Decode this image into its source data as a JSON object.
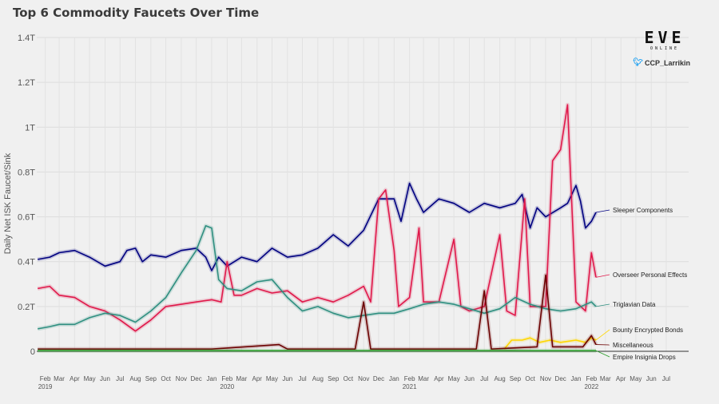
{
  "chart_data": {
    "type": "line",
    "title": "Top 6 Commodity Faucets Over Time",
    "ylabel": "Daily Net ISK Faucet/Sink",
    "y_ticks": [
      {
        "value": 0,
        "label": "0"
      },
      {
        "value": 0.2,
        "label": "0.2T"
      },
      {
        "value": 0.4,
        "label": "0.4T"
      },
      {
        "value": 0.6,
        "label": "0.6T"
      },
      {
        "value": 0.8,
        "label": "0.8T"
      },
      {
        "value": 1.0,
        "label": "1T"
      },
      {
        "value": 1.2,
        "label": "1.2T"
      },
      {
        "value": 1.4,
        "label": "1.4T"
      }
    ],
    "ylim": [
      0,
      1.4
    ],
    "xlim": [
      "2019-01-15",
      "2022-08-15"
    ],
    "x_ticks": [
      {
        "date": "2019-02-01",
        "label": "Feb",
        "year": "2019"
      },
      {
        "date": "2019-03-01",
        "label": "Mar"
      },
      {
        "date": "2019-04-01",
        "label": "Apr"
      },
      {
        "date": "2019-05-01",
        "label": "May"
      },
      {
        "date": "2019-06-01",
        "label": "Jun"
      },
      {
        "date": "2019-07-01",
        "label": "Jul"
      },
      {
        "date": "2019-08-01",
        "label": "Aug"
      },
      {
        "date": "2019-09-01",
        "label": "Sep"
      },
      {
        "date": "2019-10-01",
        "label": "Oct"
      },
      {
        "date": "2019-11-01",
        "label": "Nov"
      },
      {
        "date": "2019-12-01",
        "label": "Dec"
      },
      {
        "date": "2020-01-01",
        "label": "Jan"
      },
      {
        "date": "2020-02-01",
        "label": "Feb",
        "year": "2020"
      },
      {
        "date": "2020-03-01",
        "label": "Mar"
      },
      {
        "date": "2020-04-01",
        "label": "Apr"
      },
      {
        "date": "2020-05-01",
        "label": "May"
      },
      {
        "date": "2020-06-01",
        "label": "Jun"
      },
      {
        "date": "2020-07-01",
        "label": "Jul"
      },
      {
        "date": "2020-08-01",
        "label": "Aug"
      },
      {
        "date": "2020-09-01",
        "label": "Sep"
      },
      {
        "date": "2020-10-01",
        "label": "Oct"
      },
      {
        "date": "2020-11-01",
        "label": "Nov"
      },
      {
        "date": "2020-12-01",
        "label": "Dec"
      },
      {
        "date": "2021-01-01",
        "label": "Jan"
      },
      {
        "date": "2021-02-01",
        "label": "Feb",
        "year": "2021"
      },
      {
        "date": "2021-03-01",
        "label": "Mar"
      },
      {
        "date": "2021-04-01",
        "label": "Apr"
      },
      {
        "date": "2021-05-01",
        "label": "May"
      },
      {
        "date": "2021-06-01",
        "label": "Jun"
      },
      {
        "date": "2021-07-01",
        "label": "Jul"
      },
      {
        "date": "2021-08-01",
        "label": "Aug"
      },
      {
        "date": "2021-09-01",
        "label": "Sep"
      },
      {
        "date": "2021-10-01",
        "label": "Oct"
      },
      {
        "date": "2021-11-01",
        "label": "Nov"
      },
      {
        "date": "2021-12-01",
        "label": "Dec"
      },
      {
        "date": "2022-01-01",
        "label": "Jan"
      },
      {
        "date": "2022-02-01",
        "label": "Feb",
        "year": "2022"
      },
      {
        "date": "2022-03-01",
        "label": "Mar"
      },
      {
        "date": "2022-04-01",
        "label": "Apr"
      },
      {
        "date": "2022-05-01",
        "label": "May"
      },
      {
        "date": "2022-06-01",
        "label": "Jun"
      },
      {
        "date": "2022-07-01",
        "label": "Jul"
      }
    ],
    "grid": true,
    "series": [
      {
        "name": "Sleeper Components",
        "color": "#000080",
        "points": [
          [
            "2019-01-17",
            0.41
          ],
          [
            "2019-02-10",
            0.42
          ],
          [
            "2019-03-01",
            0.44
          ],
          [
            "2019-04-01",
            0.45
          ],
          [
            "2019-05-01",
            0.42
          ],
          [
            "2019-06-01",
            0.38
          ],
          [
            "2019-07-01",
            0.4
          ],
          [
            "2019-07-15",
            0.45
          ],
          [
            "2019-08-01",
            0.46
          ],
          [
            "2019-08-15",
            0.4
          ],
          [
            "2019-09-01",
            0.43
          ],
          [
            "2019-10-01",
            0.42
          ],
          [
            "2019-11-01",
            0.45
          ],
          [
            "2019-12-01",
            0.46
          ],
          [
            "2019-12-20",
            0.42
          ],
          [
            "2020-01-01",
            0.36
          ],
          [
            "2020-01-15",
            0.42
          ],
          [
            "2020-02-01",
            0.38
          ],
          [
            "2020-03-01",
            0.42
          ],
          [
            "2020-04-01",
            0.4
          ],
          [
            "2020-05-01",
            0.46
          ],
          [
            "2020-06-01",
            0.42
          ],
          [
            "2020-07-01",
            0.43
          ],
          [
            "2020-08-01",
            0.46
          ],
          [
            "2020-09-01",
            0.52
          ],
          [
            "2020-10-01",
            0.47
          ],
          [
            "2020-11-01",
            0.54
          ],
          [
            "2020-12-01",
            0.68
          ],
          [
            "2021-01-01",
            0.68
          ],
          [
            "2021-01-15",
            0.58
          ],
          [
            "2021-02-01",
            0.75
          ],
          [
            "2021-02-15",
            0.68
          ],
          [
            "2021-03-01",
            0.62
          ],
          [
            "2021-04-01",
            0.68
          ],
          [
            "2021-05-01",
            0.66
          ],
          [
            "2021-06-01",
            0.62
          ],
          [
            "2021-07-01",
            0.66
          ],
          [
            "2021-08-01",
            0.64
          ],
          [
            "2021-09-01",
            0.66
          ],
          [
            "2021-09-15",
            0.7
          ],
          [
            "2021-10-01",
            0.55
          ],
          [
            "2021-10-15",
            0.64
          ],
          [
            "2021-11-01",
            0.6
          ],
          [
            "2021-12-01",
            0.64
          ],
          [
            "2021-12-15",
            0.66
          ],
          [
            "2022-01-01",
            0.74
          ],
          [
            "2022-01-10",
            0.67
          ],
          [
            "2022-01-20",
            0.55
          ],
          [
            "2022-02-01",
            0.58
          ],
          [
            "2022-02-10",
            0.62
          ]
        ]
      },
      {
        "name": "Overseer Personal Effects",
        "color": "#e0184a",
        "points": [
          [
            "2019-01-17",
            0.28
          ],
          [
            "2019-02-10",
            0.29
          ],
          [
            "2019-03-01",
            0.25
          ],
          [
            "2019-04-01",
            0.24
          ],
          [
            "2019-05-01",
            0.2
          ],
          [
            "2019-06-01",
            0.18
          ],
          [
            "2019-07-01",
            0.14
          ],
          [
            "2019-08-01",
            0.09
          ],
          [
            "2019-09-01",
            0.14
          ],
          [
            "2019-10-01",
            0.2
          ],
          [
            "2019-11-01",
            0.21
          ],
          [
            "2019-12-01",
            0.22
          ],
          [
            "2020-01-01",
            0.23
          ],
          [
            "2020-01-20",
            0.22
          ],
          [
            "2020-02-01",
            0.4
          ],
          [
            "2020-02-15",
            0.25
          ],
          [
            "2020-03-01",
            0.25
          ],
          [
            "2020-04-01",
            0.28
          ],
          [
            "2020-05-01",
            0.26
          ],
          [
            "2020-06-01",
            0.27
          ],
          [
            "2020-07-01",
            0.22
          ],
          [
            "2020-08-01",
            0.24
          ],
          [
            "2020-09-01",
            0.22
          ],
          [
            "2020-10-01",
            0.25
          ],
          [
            "2020-11-01",
            0.29
          ],
          [
            "2020-11-15",
            0.22
          ],
          [
            "2020-12-01",
            0.68
          ],
          [
            "2020-12-15",
            0.72
          ],
          [
            "2021-01-01",
            0.45
          ],
          [
            "2021-01-10",
            0.2
          ],
          [
            "2021-02-01",
            0.24
          ],
          [
            "2021-02-20",
            0.55
          ],
          [
            "2021-03-01",
            0.22
          ],
          [
            "2021-04-01",
            0.22
          ],
          [
            "2021-05-01",
            0.5
          ],
          [
            "2021-05-15",
            0.2
          ],
          [
            "2021-06-01",
            0.18
          ],
          [
            "2021-07-01",
            0.2
          ],
          [
            "2021-08-01",
            0.52
          ],
          [
            "2021-08-15",
            0.18
          ],
          [
            "2021-09-01",
            0.16
          ],
          [
            "2021-09-20",
            0.68
          ],
          [
            "2021-10-01",
            0.2
          ],
          [
            "2021-11-01",
            0.2
          ],
          [
            "2021-11-15",
            0.85
          ],
          [
            "2021-12-01",
            0.9
          ],
          [
            "2021-12-15",
            1.1
          ],
          [
            "2022-01-01",
            0.22
          ],
          [
            "2022-01-20",
            0.18
          ],
          [
            "2022-02-01",
            0.44
          ],
          [
            "2022-02-10",
            0.33
          ]
        ]
      },
      {
        "name": "Triglavian Data",
        "color": "#2f8f80",
        "points": [
          [
            "2019-01-17",
            0.1
          ],
          [
            "2019-02-10",
            0.11
          ],
          [
            "2019-03-01",
            0.12
          ],
          [
            "2019-04-01",
            0.12
          ],
          [
            "2019-05-01",
            0.15
          ],
          [
            "2019-06-01",
            0.17
          ],
          [
            "2019-07-01",
            0.16
          ],
          [
            "2019-08-01",
            0.13
          ],
          [
            "2019-09-01",
            0.18
          ],
          [
            "2019-10-01",
            0.24
          ],
          [
            "2019-11-01",
            0.35
          ],
          [
            "2019-12-01",
            0.45
          ],
          [
            "2019-12-20",
            0.56
          ],
          [
            "2020-01-01",
            0.55
          ],
          [
            "2020-01-15",
            0.32
          ],
          [
            "2020-02-01",
            0.28
          ],
          [
            "2020-03-01",
            0.27
          ],
          [
            "2020-04-01",
            0.31
          ],
          [
            "2020-05-01",
            0.32
          ],
          [
            "2020-06-01",
            0.24
          ],
          [
            "2020-07-01",
            0.18
          ],
          [
            "2020-08-01",
            0.2
          ],
          [
            "2020-09-01",
            0.17
          ],
          [
            "2020-10-01",
            0.15
          ],
          [
            "2020-11-01",
            0.16
          ],
          [
            "2020-12-01",
            0.17
          ],
          [
            "2021-01-01",
            0.17
          ],
          [
            "2021-02-01",
            0.19
          ],
          [
            "2021-03-01",
            0.21
          ],
          [
            "2021-04-01",
            0.22
          ],
          [
            "2021-05-01",
            0.21
          ],
          [
            "2021-06-01",
            0.19
          ],
          [
            "2021-07-01",
            0.17
          ],
          [
            "2021-08-01",
            0.19
          ],
          [
            "2021-09-01",
            0.24
          ],
          [
            "2021-10-01",
            0.21
          ],
          [
            "2021-11-01",
            0.19
          ],
          [
            "2021-12-01",
            0.18
          ],
          [
            "2022-01-01",
            0.19
          ],
          [
            "2022-02-01",
            0.22
          ],
          [
            "2022-02-10",
            0.2
          ]
        ]
      },
      {
        "name": "Bounty Encrypted Bonds",
        "color": "#ffd700",
        "points": [
          [
            "2021-08-10",
            0.01
          ],
          [
            "2021-08-25",
            0.05
          ],
          [
            "2021-09-15",
            0.05
          ],
          [
            "2021-10-01",
            0.06
          ],
          [
            "2021-10-20",
            0.04
          ],
          [
            "2021-11-10",
            0.05
          ],
          [
            "2021-12-01",
            0.04
          ],
          [
            "2022-01-01",
            0.05
          ],
          [
            "2022-01-20",
            0.04
          ],
          [
            "2022-02-01",
            0.06
          ],
          [
            "2022-02-10",
            0.05
          ]
        ]
      },
      {
        "name": "Miscellaneous",
        "color": "#6b0000",
        "points": [
          [
            "2019-01-17",
            0.01
          ],
          [
            "2019-06-01",
            0.01
          ],
          [
            "2020-01-01",
            0.01
          ],
          [
            "2020-05-15",
            0.03
          ],
          [
            "2020-06-01",
            0.01
          ],
          [
            "2020-10-15",
            0.01
          ],
          [
            "2020-11-01",
            0.22
          ],
          [
            "2020-11-15",
            0.01
          ],
          [
            "2021-06-15",
            0.01
          ],
          [
            "2021-07-01",
            0.27
          ],
          [
            "2021-07-15",
            0.01
          ],
          [
            "2021-10-15",
            0.02
          ],
          [
            "2021-11-01",
            0.34
          ],
          [
            "2021-11-15",
            0.02
          ],
          [
            "2022-01-15",
            0.02
          ],
          [
            "2022-02-01",
            0.07
          ],
          [
            "2022-02-10",
            0.03
          ]
        ]
      },
      {
        "name": "Empire Insignia Drops",
        "color": "#2e9e2e",
        "points": [
          [
            "2019-01-17",
            0.003
          ],
          [
            "2022-02-10",
            0.003
          ]
        ]
      }
    ]
  },
  "branding": {
    "logo_text": "EVE",
    "logo_sub": "ONLINE",
    "twitter_handle": "CCP_Larrikin"
  }
}
